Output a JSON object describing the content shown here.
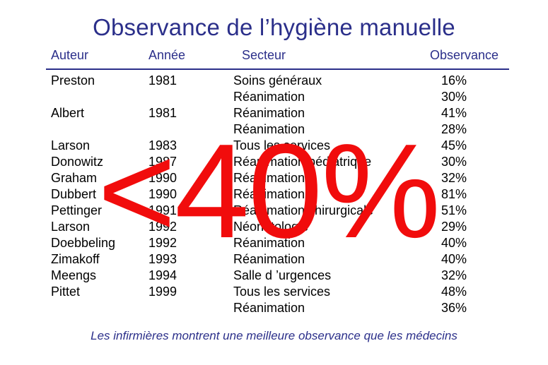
{
  "title": "Observance de l’hygiène manuelle",
  "headers": {
    "auteur": "Auteur",
    "annee": "Année",
    "secteur": "Secteur",
    "observance": "Observance"
  },
  "rows": [
    {
      "auteur": "Preston",
      "annee": "1981",
      "secteur": "Soins généraux",
      "observance": "16%"
    },
    {
      "auteur": "",
      "annee": "",
      "secteur": "Réanimation",
      "observance": "30%"
    },
    {
      "auteur": "Albert",
      "annee": "1981",
      "secteur": "Réanimation",
      "observance": "41%"
    },
    {
      "auteur": "",
      "annee": "",
      "secteur": "Réanimation",
      "observance": "28%"
    },
    {
      "auteur": "Larson",
      "annee": "1983",
      "secteur": "Tous les services",
      "observance": "45%"
    },
    {
      "auteur": "Donowitz",
      "annee": "1987",
      "secteur": "Réanimation pédiatrique",
      "observance": "30%"
    },
    {
      "auteur": "Graham",
      "annee": "1990",
      "secteur": "Réanimation",
      "observance": "32%"
    },
    {
      "auteur": "Dubbert",
      "annee": "1990",
      "secteur": "Réanimation",
      "observance": "81%"
    },
    {
      "auteur": "Pettinger",
      "annee": "1991",
      "secteur": "Réanimation chirurgicale",
      "observance": "51%"
    },
    {
      "auteur": "Larson",
      "annee": "1992",
      "secteur": "Néonatologie",
      "observance": "29%"
    },
    {
      "auteur": "Doebbeling",
      "annee": "1992",
      "secteur": "Réanimation",
      "observance": "40%"
    },
    {
      "auteur": "Zimakoff",
      "annee": "1993",
      "secteur": "Réanimation",
      "observance": "40%"
    },
    {
      "auteur": "Meengs",
      "annee": "1994",
      "secteur": "Salle d ’urgences",
      "observance": "32%"
    },
    {
      "auteur": "Pittet",
      "annee": "1999",
      "secteur": "Tous les services",
      "observance": "48%"
    },
    {
      "auteur": "",
      "annee": "",
      "secteur": "Réanimation",
      "observance": "36%"
    }
  ],
  "overlay_text": "<40%",
  "overlay_color": "#f10c0c",
  "accent_color": "#2b2f8a",
  "footer": "Les infirmières montrent une meilleure observance que les médecins"
}
